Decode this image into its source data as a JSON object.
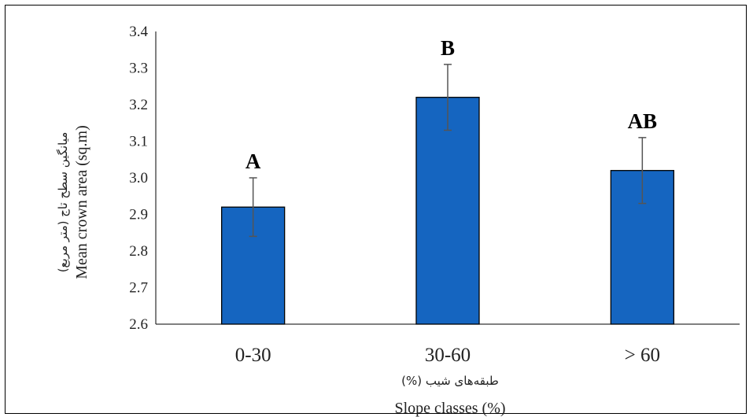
{
  "chart_data": {
    "type": "bar",
    "categories": [
      "0-30",
      "30-60",
      "> 60"
    ],
    "values": [
      2.92,
      3.22,
      3.02
    ],
    "errors": [
      0.08,
      0.09,
      0.09
    ],
    "significance_labels": [
      "A",
      "B",
      "AB"
    ],
    "ylim": [
      2.6,
      3.4
    ],
    "yticks": [
      "2.6",
      "2.7",
      "2.8",
      "2.9",
      "3.0",
      "3.1",
      "3.2",
      "3.3",
      "3.4"
    ],
    "ylabel": "Mean crown area (sq.m)",
    "ylabel_fa": "میانگین سطح تاج (متر مربع)",
    "xlabel": "Slope classes (%)",
    "xlabel_fa": "طبقه‌های شیب (%)",
    "grid": false,
    "bar_color": "#1565c0",
    "bar_edge_color": "#000000"
  }
}
